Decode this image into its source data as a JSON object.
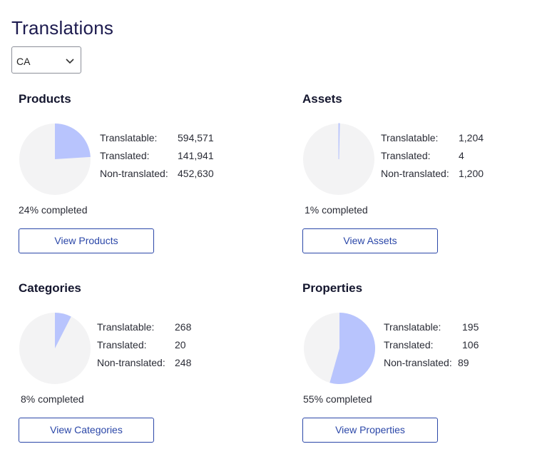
{
  "page_title": "Translations",
  "locale_select": {
    "value": "CA"
  },
  "colors": {
    "pie_done": "#b8c4fd",
    "pie_rest": "#f3f3f4",
    "accent": "#2b47a8"
  },
  "cards": [
    {
      "title": "Products",
      "percent_fraction": 0.24,
      "stats": [
        {
          "label": "Translatable:",
          "value": "594,571"
        },
        {
          "label": "Translated:",
          "value": "141,941"
        },
        {
          "label": "Non-translated:",
          "value": "452,630"
        }
      ],
      "completed": "24% completed",
      "button": "View Products"
    },
    {
      "title": "Assets",
      "percent_fraction": 0.0033,
      "stats": [
        {
          "label": "Translatable:",
          "value": "1,204"
        },
        {
          "label": "Translated:",
          "value": "4"
        },
        {
          "label": "Non-translated:",
          "value": "1,200"
        }
      ],
      "completed": "1% completed",
      "button": "View Assets"
    },
    {
      "title": "Categories",
      "percent_fraction": 0.075,
      "stats": [
        {
          "label": "Translatable:",
          "value": "268"
        },
        {
          "label": "Translated:",
          "value": "20"
        },
        {
          "label": "Non-translated:",
          "value": "248"
        }
      ],
      "completed": "8% completed",
      "button": "View Categories"
    },
    {
      "title": "Properties",
      "percent_fraction": 0.544,
      "stats": [
        {
          "label": "Translatable:",
          "value": "195"
        },
        {
          "label": "Translated:",
          "value": "106"
        },
        {
          "label": "Non-translated:",
          "value": "89"
        }
      ],
      "completed": "55% completed",
      "button": "View Properties"
    }
  ]
}
